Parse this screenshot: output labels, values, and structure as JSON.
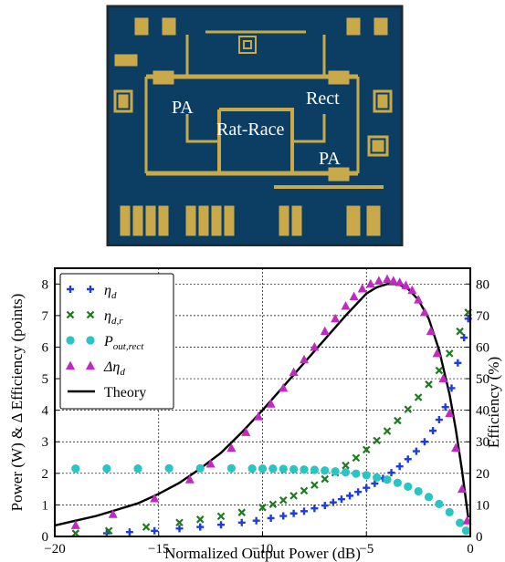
{
  "photo": {
    "labels": {
      "pa_left": "PA",
      "rect": "Rect",
      "rat_race": "Rat-Race",
      "pa_right": "PA"
    },
    "colors": {
      "substrate": "#0c3e63",
      "metal": "#c9a94a",
      "metal_dark": "#8c7124",
      "border": "#1c2a33"
    }
  },
  "chart_data": {
    "type": "scatter",
    "xlabel": "Normalized Output Power (dB)",
    "ylabel_left": "Power (W) & Δ Efficiency (points)",
    "ylabel_right": "Efficiency (%)",
    "xlim": [
      -20,
      0
    ],
    "ylim_left": [
      0,
      8.5
    ],
    "ylim_right": [
      0,
      85
    ],
    "xticks": [
      -20,
      -15,
      -10,
      -5,
      0
    ],
    "yticks_left": [
      0,
      1,
      2,
      3,
      4,
      5,
      6,
      7,
      8
    ],
    "yticks_right": [
      0,
      10,
      20,
      30,
      40,
      50,
      60,
      70,
      80
    ],
    "tick_labels_x": [
      "−20",
      "−15",
      "−10",
      "−5",
      "0"
    ],
    "grid": true,
    "legend_position": "upper-left",
    "series": [
      {
        "name": "η_d",
        "label_main": "η",
        "label_sub": "d",
        "marker": "plus",
        "color": "#1f3bd9",
        "axis": "right",
        "x": [
          -17.5,
          -16.4,
          -15.2,
          -14.0,
          -13.0,
          -12.0,
          -11.0,
          -10.3,
          -9.6,
          -9.0,
          -8.5,
          -8.0,
          -7.5,
          -7.0,
          -6.6,
          -6.2,
          -5.8,
          -5.4,
          -5.0,
          -4.6,
          -4.2,
          -3.8,
          -3.4,
          -3.0,
          -2.6,
          -2.2,
          -1.8,
          -1.5,
          -1.2,
          -0.9,
          -0.6,
          -0.3,
          -0.1
        ],
        "y": [
          1.0,
          1.4,
          1.8,
          2.5,
          3.0,
          3.7,
          4.4,
          5.0,
          5.8,
          6.5,
          7.3,
          8.0,
          8.9,
          9.8,
          10.8,
          11.8,
          12.9,
          14.1,
          15.4,
          16.8,
          18.4,
          20.2,
          22.2,
          24.5,
          27.0,
          30.0,
          33.5,
          37.0,
          41.0,
          47.0,
          55.0,
          63.0,
          69.0
        ]
      },
      {
        "name": "η_d,r",
        "label_main": "η",
        "label_sub": "d,r",
        "marker": "x",
        "color": "#1e7a1e",
        "axis": "right",
        "x": [
          -19.0,
          -17.4,
          -15.6,
          -14.0,
          -13.0,
          -12.0,
          -11.0,
          -10.0,
          -9.5,
          -9.0,
          -8.5,
          -8.0,
          -7.5,
          -7.0,
          -6.5,
          -6.0,
          -5.5,
          -5.0,
          -4.5,
          -4.0,
          -3.5,
          -3.0,
          -2.5,
          -2.0,
          -1.5,
          -1.0,
          -0.5,
          -0.1
        ],
        "y": [
          1.0,
          1.8,
          3.0,
          4.4,
          5.4,
          6.4,
          7.6,
          9.2,
          10.2,
          11.5,
          12.9,
          14.5,
          16.3,
          18.2,
          20.2,
          22.5,
          24.9,
          27.5,
          30.4,
          33.4,
          36.7,
          40.3,
          44.1,
          48.2,
          52.6,
          58.0,
          65.0,
          71.0
        ]
      },
      {
        "name": "P_out,rect",
        "label_main": "P",
        "label_sub": "out,rect",
        "marker": "circle",
        "color": "#29c4c4",
        "axis": "left",
        "x": [
          -19.0,
          -17.5,
          -16.0,
          -14.5,
          -13.0,
          -11.5,
          -10.5,
          -10.0,
          -9.5,
          -9.0,
          -8.5,
          -8.0,
          -7.5,
          -7.0,
          -6.5,
          -6.0,
          -5.5,
          -5.0,
          -4.5,
          -4.0,
          -3.5,
          -3.0,
          -2.5,
          -2.0,
          -1.5,
          -1.0,
          -0.5,
          -0.2
        ],
        "y": [
          2.15,
          2.15,
          2.15,
          2.16,
          2.16,
          2.16,
          2.15,
          2.15,
          2.15,
          2.14,
          2.13,
          2.12,
          2.11,
          2.09,
          2.06,
          2.03,
          1.99,
          1.94,
          1.87,
          1.8,
          1.7,
          1.58,
          1.43,
          1.25,
          1.03,
          0.77,
          0.43,
          0.18
        ]
      },
      {
        "name": "Δη_d",
        "label_main": "Δη",
        "label_sub": "d",
        "marker": "triangle",
        "color": "#c02ac0",
        "axis": "left",
        "x": [
          -19.0,
          -17.2,
          -15.2,
          -13.5,
          -12.5,
          -11.5,
          -10.8,
          -10.2,
          -9.6,
          -9.0,
          -8.5,
          -8.0,
          -7.5,
          -7.0,
          -6.5,
          -6.0,
          -5.6,
          -5.2,
          -4.8,
          -4.4,
          -4.0,
          -3.7,
          -3.4,
          -3.1,
          -2.8,
          -2.5,
          -2.2,
          -1.9,
          -1.6,
          -1.3,
          -1.0,
          -0.7,
          -0.4,
          -0.15
        ],
        "y": [
          0.35,
          0.7,
          1.2,
          1.8,
          2.3,
          2.8,
          3.3,
          3.8,
          4.2,
          4.7,
          5.2,
          5.6,
          6.0,
          6.5,
          6.9,
          7.3,
          7.6,
          7.85,
          8.0,
          8.1,
          8.15,
          8.1,
          8.05,
          7.95,
          7.8,
          7.5,
          7.1,
          6.5,
          5.8,
          5.0,
          3.9,
          2.8,
          1.5,
          0.5
        ]
      },
      {
        "name": "Theory",
        "marker": "line",
        "color": "#000000",
        "axis": "left",
        "x": [
          -20,
          -19,
          -18,
          -17,
          -16,
          -15,
          -14,
          -13,
          -12,
          -11,
          -10,
          -9,
          -8,
          -7,
          -6,
          -5.5,
          -5,
          -4.5,
          -4,
          -3.5,
          -3,
          -2.5,
          -2,
          -1.5,
          -1,
          -0.7,
          -0.4,
          -0.1
        ],
        "y": [
          0.35,
          0.5,
          0.65,
          0.85,
          1.05,
          1.35,
          1.7,
          2.15,
          2.65,
          3.3,
          4.0,
          4.75,
          5.5,
          6.25,
          7.0,
          7.35,
          7.7,
          7.9,
          8.0,
          8.0,
          7.85,
          7.5,
          6.9,
          5.9,
          4.5,
          3.4,
          2.1,
          0.6
        ]
      }
    ]
  }
}
